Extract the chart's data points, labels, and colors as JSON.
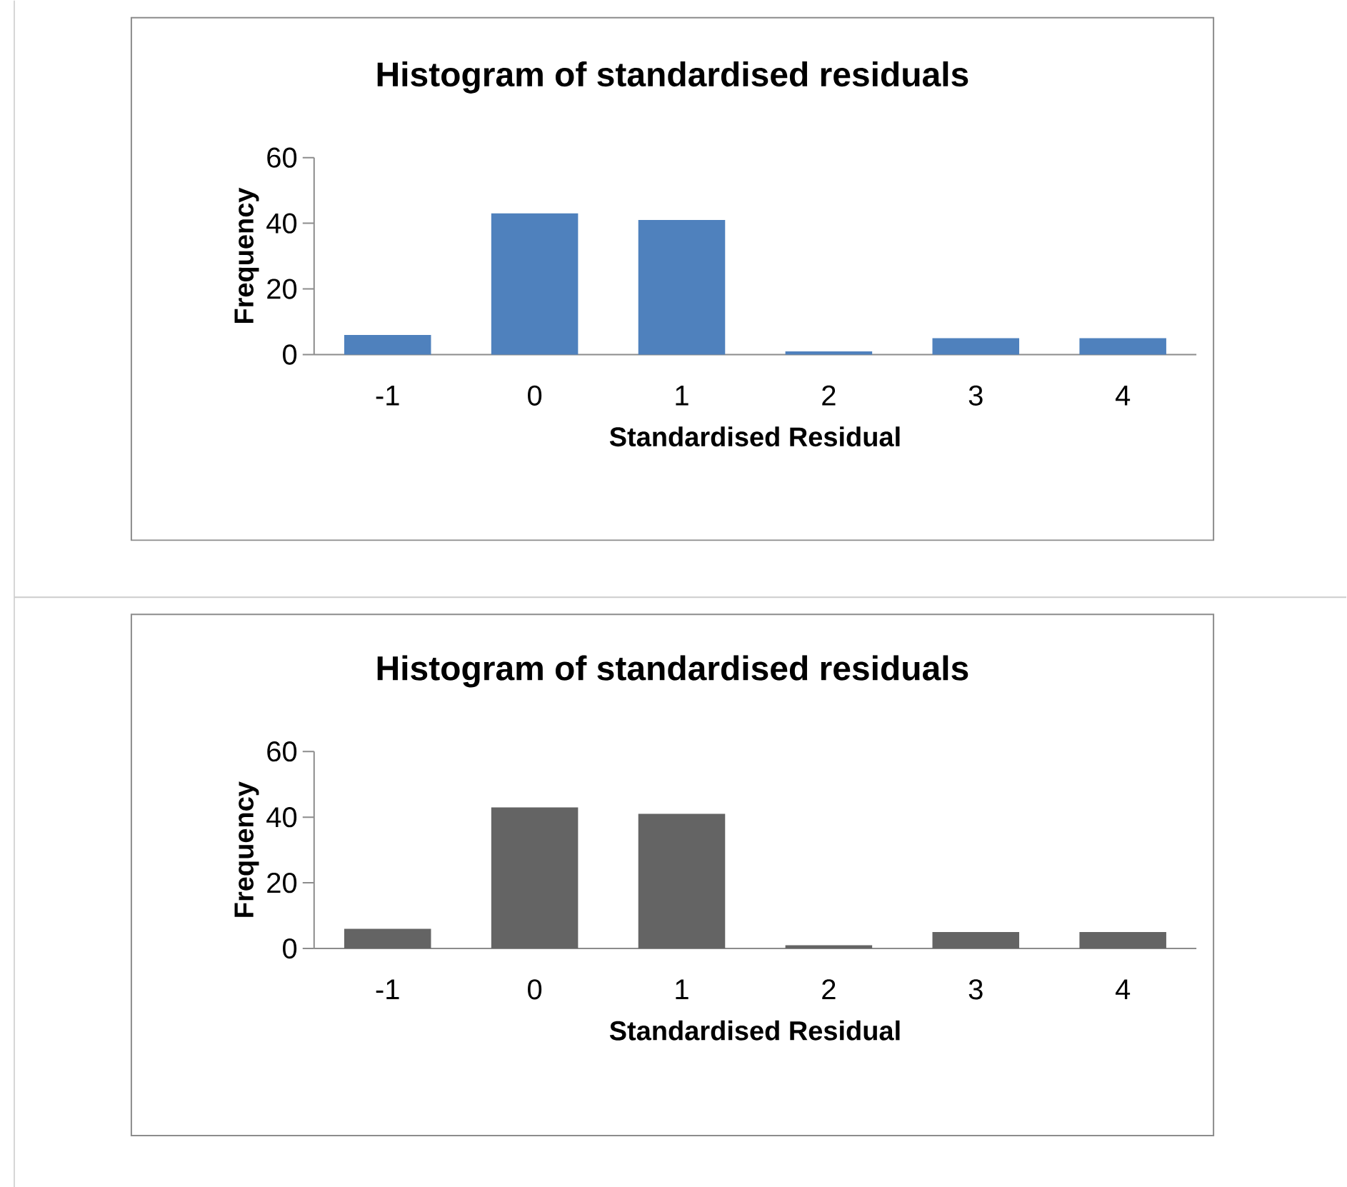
{
  "chart_data": [
    {
      "type": "bar",
      "title": "Histogram of standardised residuals",
      "xlabel": "Standardised Residual",
      "ylabel": "Frequency",
      "categories": [
        "-1",
        "0",
        "1",
        "2",
        "3",
        "4"
      ],
      "values": [
        6,
        43,
        41,
        1,
        5,
        5
      ],
      "color": "#4f81bd",
      "ylim": [
        0,
        60
      ],
      "yticks": [
        0,
        20,
        40,
        60
      ]
    },
    {
      "type": "bar",
      "title": "Histogram of standardised residuals",
      "xlabel": "Standardised Residual",
      "ylabel": "Frequency",
      "categories": [
        "-1",
        "0",
        "1",
        "2",
        "3",
        "4"
      ],
      "values": [
        6,
        43,
        41,
        1,
        5,
        5
      ],
      "color": "#646464",
      "ylim": [
        0,
        60
      ],
      "yticks": [
        0,
        20,
        40,
        60
      ]
    }
  ]
}
